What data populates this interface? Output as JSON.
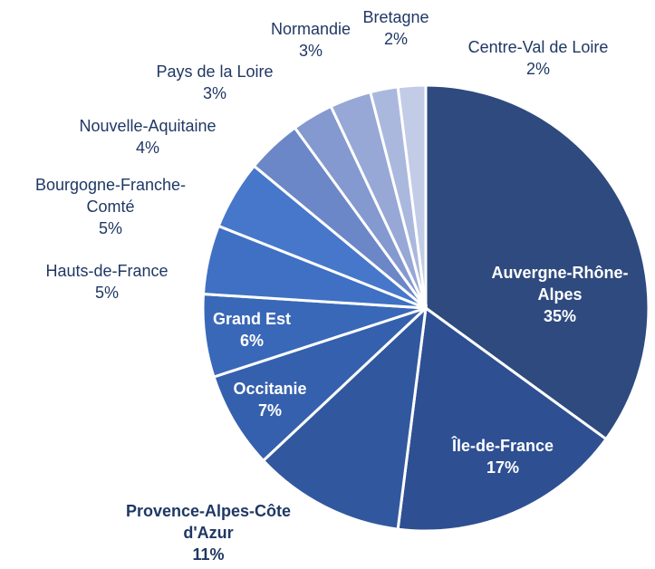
{
  "chart_data": {
    "type": "pie",
    "categories": [
      "Auvergne-Rhône-Alpes",
      "Île-de-France",
      "Provence-Alpes-Côte d'Azur",
      "Occitanie",
      "Grand Est",
      "Hauts-de-France",
      "Bourgogne-Franche-Comté",
      "Nouvelle-Aquitaine",
      "Pays de la Loire",
      "Normandie",
      "Bretagne",
      "Centre-Val de Loire"
    ],
    "values": [
      35,
      17,
      11,
      7,
      6,
      5,
      5,
      4,
      3,
      3,
      2,
      2
    ],
    "value_labels": [
      "35%",
      "17%",
      "11%",
      "7%",
      "6%",
      "5%",
      "5%",
      "4%",
      "3%",
      "3%",
      "2%",
      "2%"
    ],
    "colors": [
      "#2e4a7f",
      "#2e5092",
      "#31589f",
      "#3560ad",
      "#3a68b8",
      "#3f70c4",
      "#4677ca",
      "#6c87c8",
      "#8399cf",
      "#97a8d6",
      "#abb8de",
      "#c2cce7"
    ]
  }
}
